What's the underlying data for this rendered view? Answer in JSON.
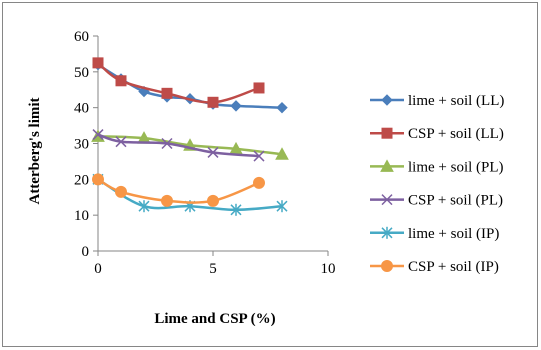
{
  "chart_data": {
    "type": "line",
    "title": "",
    "xlabel": "Lime and CSP (%)",
    "ylabel": "Atterberg's limit",
    "xlim": [
      0,
      10
    ],
    "ylim": [
      0,
      60
    ],
    "xticks": [
      0,
      5,
      10
    ],
    "yticks": [
      0,
      10,
      20,
      30,
      40,
      50,
      60
    ],
    "grid": false,
    "legend_position": "right",
    "line_style": "smooth",
    "series": [
      {
        "name": "lime + soil (LL)",
        "color": "#4A7EBB",
        "marker": "diamond",
        "x": [
          0,
          1,
          2,
          3,
          4,
          5,
          6,
          8
        ],
        "y": [
          52,
          48,
          44.5,
          43,
          42.5,
          41,
          40.5,
          40
        ]
      },
      {
        "name": "CSP + soil (LL)",
        "color": "#BE4B48",
        "marker": "square",
        "x": [
          0,
          1,
          3,
          5,
          7
        ],
        "y": [
          52.5,
          47.5,
          44,
          41.5,
          45.5
        ]
      },
      {
        "name": "lime + soil (PL)",
        "color": "#98B954",
        "marker": "triangle",
        "x": [
          0,
          2,
          4,
          6,
          8
        ],
        "y": [
          32,
          31.5,
          29.5,
          28.5,
          27
        ]
      },
      {
        "name": "CSP + soil (PL)",
        "color": "#7D60A0",
        "marker": "x",
        "x": [
          0,
          1,
          3,
          5,
          7
        ],
        "y": [
          32.5,
          30.5,
          30,
          27.5,
          26.5
        ]
      },
      {
        "name": "lime + soil (IP)",
        "color": "#46AAC5",
        "marker": "star",
        "x": [
          0,
          2,
          4,
          6,
          8
        ],
        "y": [
          20,
          12.5,
          12.5,
          11.5,
          12.5
        ]
      },
      {
        "name": "CSP + soil (IP)",
        "color": "#F79646",
        "marker": "circle",
        "x": [
          0,
          1,
          3,
          5,
          7
        ],
        "y": [
          20,
          16.5,
          14,
          14,
          19
        ]
      }
    ]
  }
}
